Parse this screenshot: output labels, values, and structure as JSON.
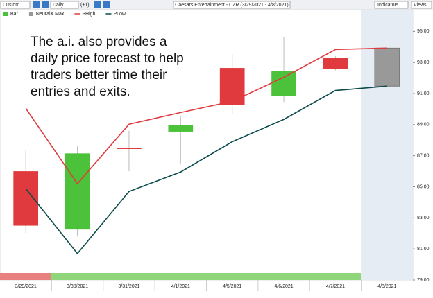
{
  "toolbar": {
    "range": "Custom",
    "interval": "Daily",
    "offset": "(+1)",
    "indicators": "Indicators",
    "views": "Views"
  },
  "chart_data": {
    "type": "candlestick",
    "title": "Caesars Entertainment - CZR (3/29/2021 - 4/8/2021)",
    "annotation": [
      "The a.i. also provides a",
      "daily price forecast to help",
      "traders better time their",
      "entries and exits."
    ],
    "categories": [
      "3/29/2021",
      "3/30/2021",
      "3/31/2021",
      "4/1/2021",
      "4/5/2021",
      "4/6/2021",
      "4/7/2021",
      "4/8/2021"
    ],
    "series": [
      {
        "name": "Bar",
        "up_color": "#4cc13a",
        "down_color": "#e03a3e",
        "open": [
          86.0,
          82.25,
          87.5,
          88.55,
          92.65,
          90.85,
          93.3,
          null
        ],
        "high": [
          87.33,
          87.6,
          88.6,
          89.56,
          93.53,
          94.64,
          93.4,
          null
        ],
        "low": [
          82.03,
          81.8,
          86.0,
          86.44,
          89.7,
          90.45,
          92.5,
          null
        ],
        "close": [
          82.5,
          87.15,
          87.5,
          88.95,
          90.25,
          92.45,
          92.6,
          null
        ]
      },
      {
        "name": "NeuralX.Max",
        "color": "#999999",
        "low": [
          null,
          null,
          null,
          null,
          null,
          null,
          null,
          91.48
        ],
        "high": [
          null,
          null,
          null,
          null,
          null,
          null,
          null,
          93.93
        ]
      },
      {
        "name": "PHigh",
        "color": "#e03a3e",
        "values": [
          90.05,
          85.2,
          89.03,
          89.78,
          90.5,
          92.05,
          93.84,
          93.93
        ]
      },
      {
        "name": "PLow",
        "color": "#0b4a4a",
        "values": [
          84.88,
          80.7,
          84.7,
          85.95,
          87.9,
          89.34,
          91.2,
          91.48
        ]
      }
    ],
    "ylim": [
      79,
      96.4
    ],
    "yticks": [
      {
        "value": 79,
        "label": "79.00"
      },
      {
        "value": 81,
        "label": "81.00"
      },
      {
        "value": 83,
        "label": "83.00"
      },
      {
        "value": 85,
        "label": "85.00"
      },
      {
        "value": 87,
        "label": "87.00"
      },
      {
        "value": 89,
        "label": "89.00"
      },
      {
        "value": 91,
        "label": "91.00"
      },
      {
        "value": 93,
        "label": "93.00"
      },
      {
        "value": 95,
        "label": "95.00"
      }
    ]
  }
}
